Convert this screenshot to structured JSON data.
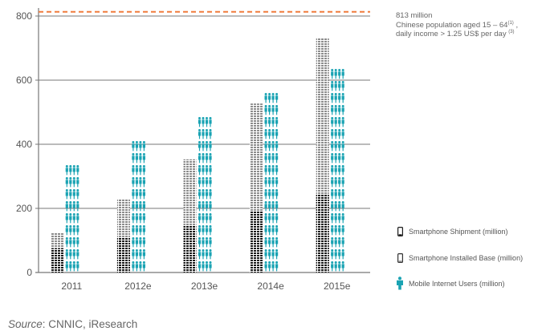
{
  "chart_data": {
    "type": "bar",
    "categories": [
      "2011",
      "2012e",
      "2013e",
      "2014e",
      "2015e"
    ],
    "series": [
      {
        "name": "Smartphone Shipment (million)",
        "values": [
          75,
          110,
          145,
          190,
          245
        ]
      },
      {
        "name": "Smartphone Installed Base (million)",
        "values": [
          123,
          229,
          353,
          527,
          731
        ]
      },
      {
        "name": "Mobile Internet Users (million)",
        "values": [
          356,
          420,
          500,
          580,
          660
        ]
      }
    ],
    "reference_line": {
      "value": 813,
      "style": "dashed",
      "color": "#f07c3c"
    },
    "ylim": [
      0,
      830
    ],
    "yticks": [
      "0",
      "200",
      "400",
      "600",
      "800"
    ],
    "grid": true,
    "legend_position": "right",
    "colors": {
      "shipment": "#1a1a1a",
      "installed_base": "#8c8c8c",
      "users": "#1aa3b3",
      "grid": "#777777",
      "reference": "#f07c3c"
    }
  },
  "annotation": {
    "line1": "813 million",
    "line2": "Chinese population aged 15 – 64",
    "sup1": "(1)",
    "comma": ",",
    "line3": "daily income > 1.25 US$ per day",
    "sup2": "(3)"
  },
  "legend": {
    "shipment_label": "Smartphone Shipment (million)",
    "installed_label": "Smartphone Installed Base (million)",
    "users_label": "Mobile Internet Users (million)",
    "icons": {
      "shipment": "phone-outline-icon",
      "installed": "phone-outline-icon",
      "users": "person-icon"
    }
  },
  "source": {
    "prefix": "Source",
    "text": ": CNNIC, iResearch"
  }
}
